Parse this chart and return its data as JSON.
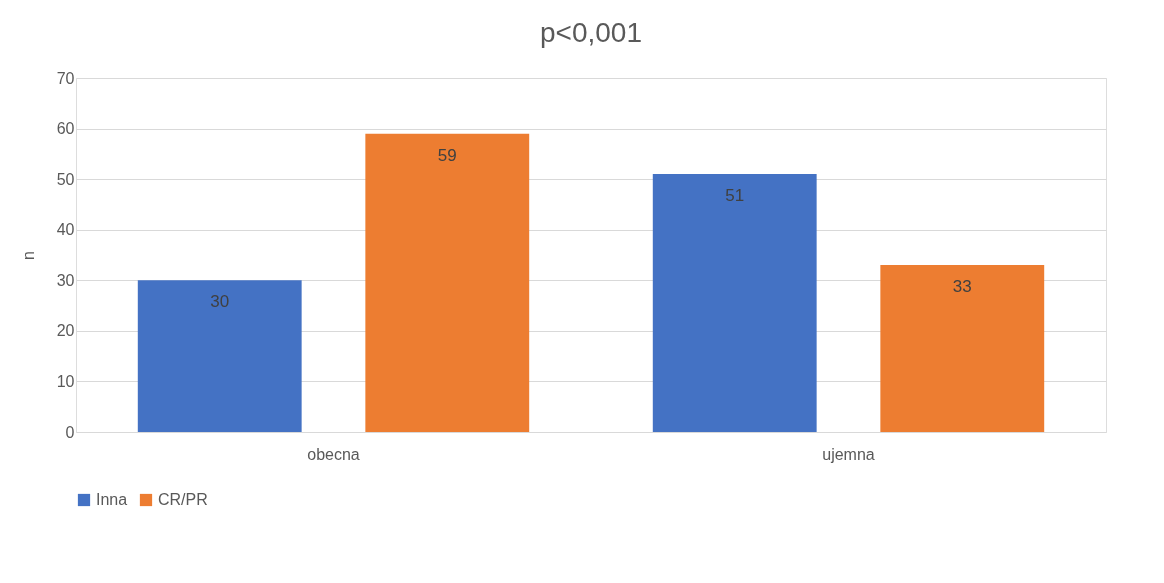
{
  "chart_data": {
    "type": "bar",
    "title": "p<0,001",
    "ylabel": "n",
    "categories": [
      "obecna",
      "ujemna"
    ],
    "series": [
      {
        "name": "Inna",
        "color": "#4472c4",
        "values": [
          30,
          51
        ]
      },
      {
        "name": "CR/PR",
        "color": "#ed7d31",
        "values": [
          59,
          33
        ]
      }
    ],
    "ylim": [
      0,
      70
    ],
    "yticks": [
      0,
      10,
      20,
      30,
      40,
      50,
      60,
      70
    ],
    "grid": "y",
    "legend": "bottom",
    "data_labels": true
  }
}
